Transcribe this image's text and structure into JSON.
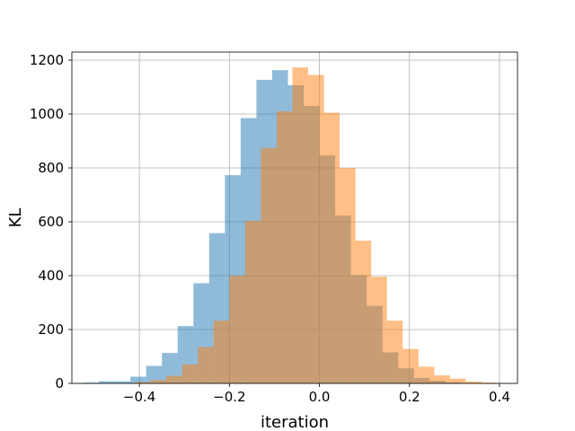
{
  "chart_data": {
    "type": "histogram",
    "title": "",
    "xlabel": "iteration",
    "ylabel": "KL",
    "xlim": [
      -0.55,
      0.44
    ],
    "ylim": [
      0,
      1230
    ],
    "xticks": [
      -0.4,
      -0.2,
      0.0,
      0.2,
      0.4
    ],
    "xtick_labels": [
      "−0.4",
      "−0.2",
      "0.0",
      "0.2",
      "0.4"
    ],
    "yticks": [
      0,
      200,
      400,
      600,
      800,
      1000,
      1200
    ],
    "ytick_labels": [
      "0",
      "200",
      "400",
      "600",
      "800",
      "1000",
      "1200"
    ],
    "grid": true,
    "legend": "none",
    "series": [
      {
        "color": "#1f77b4",
        "opacity": 0.5,
        "bin_width": 0.035,
        "bins": [
          {
            "x0": -0.525,
            "count": 3
          },
          {
            "x0": -0.49,
            "count": 8
          },
          {
            "x0": -0.455,
            "count": 8
          },
          {
            "x0": -0.42,
            "count": 25
          },
          {
            "x0": -0.385,
            "count": 65
          },
          {
            "x0": -0.35,
            "count": 113
          },
          {
            "x0": -0.315,
            "count": 213
          },
          {
            "x0": -0.28,
            "count": 372
          },
          {
            "x0": -0.245,
            "count": 558
          },
          {
            "x0": -0.21,
            "count": 773
          },
          {
            "x0": -0.175,
            "count": 985
          },
          {
            "x0": -0.14,
            "count": 1127
          },
          {
            "x0": -0.105,
            "count": 1163
          },
          {
            "x0": -0.07,
            "count": 1107
          },
          {
            "x0": -0.035,
            "count": 1030
          },
          {
            "x0": 0.0,
            "count": 846
          },
          {
            "x0": 0.035,
            "count": 623
          },
          {
            "x0": 0.07,
            "count": 402
          },
          {
            "x0": 0.105,
            "count": 288
          },
          {
            "x0": 0.14,
            "count": 115
          },
          {
            "x0": 0.175,
            "count": 56
          },
          {
            "x0": 0.21,
            "count": 20
          },
          {
            "x0": 0.245,
            "count": 10
          },
          {
            "x0": 0.28,
            "count": 4
          }
        ]
      },
      {
        "color": "#ff7f0e",
        "opacity": 0.5,
        "bin_width": 0.035,
        "bins": [
          {
            "x0": -0.41,
            "count": 5
          },
          {
            "x0": -0.375,
            "count": 12
          },
          {
            "x0": -0.34,
            "count": 28
          },
          {
            "x0": -0.305,
            "count": 70
          },
          {
            "x0": -0.27,
            "count": 135
          },
          {
            "x0": -0.235,
            "count": 233
          },
          {
            "x0": -0.2,
            "count": 400
          },
          {
            "x0": -0.165,
            "count": 604
          },
          {
            "x0": -0.13,
            "count": 874
          },
          {
            "x0": -0.095,
            "count": 1010
          },
          {
            "x0": -0.06,
            "count": 1173
          },
          {
            "x0": -0.025,
            "count": 1145
          },
          {
            "x0": 0.01,
            "count": 1005
          },
          {
            "x0": 0.045,
            "count": 800
          },
          {
            "x0": 0.08,
            "count": 530
          },
          {
            "x0": 0.115,
            "count": 396
          },
          {
            "x0": 0.15,
            "count": 233
          },
          {
            "x0": 0.185,
            "count": 128
          },
          {
            "x0": 0.22,
            "count": 62
          },
          {
            "x0": 0.255,
            "count": 30
          },
          {
            "x0": 0.29,
            "count": 18
          },
          {
            "x0": 0.325,
            "count": 7
          },
          {
            "x0": 0.36,
            "count": 3
          }
        ]
      }
    ]
  }
}
